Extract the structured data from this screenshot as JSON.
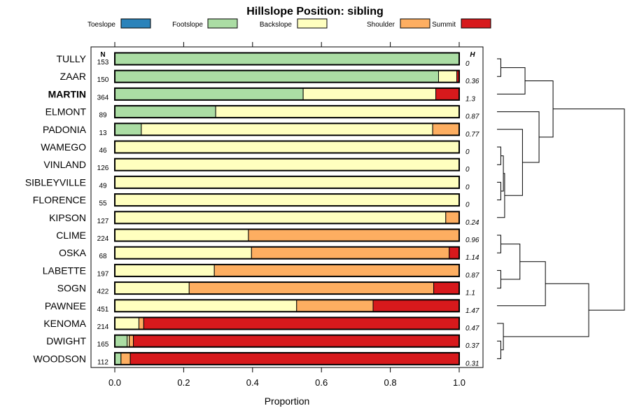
{
  "chart_data": {
    "type": "bar",
    "orientation": "horizontal",
    "stacked": true,
    "title": "Hillslope Position: sibling",
    "xlabel": "Proportion",
    "ylabel": "",
    "xlim": [
      0,
      1
    ],
    "xticks": [
      "0.0",
      "0.2",
      "0.4",
      "0.6",
      "0.8",
      "1.0"
    ],
    "n_header": "N",
    "h_header": "H",
    "legend": [
      {
        "name": "Toeslope",
        "color": "#2b83ba"
      },
      {
        "name": "Footslope",
        "color": "#abdda4"
      },
      {
        "name": "Backslope",
        "color": "#ffffbf"
      },
      {
        "name": "Shoulder",
        "color": "#fdae61"
      },
      {
        "name": "Summit",
        "color": "#d7191c"
      }
    ],
    "rows": [
      {
        "name": "TULLY",
        "n": "153",
        "h": "0",
        "bold": false,
        "values": [
          0,
          1.0,
          0,
          0,
          0
        ]
      },
      {
        "name": "ZAAR",
        "n": "150",
        "h": "0.36",
        "bold": false,
        "values": [
          0,
          0.94,
          0.053,
          0,
          0.007
        ]
      },
      {
        "name": "MARTIN",
        "n": "364",
        "h": "1.3",
        "bold": true,
        "values": [
          0,
          0.547,
          0.385,
          0,
          0.068
        ]
      },
      {
        "name": "ELMONT",
        "n": "89",
        "h": "0.87",
        "bold": false,
        "values": [
          0,
          0.293,
          0.707,
          0,
          0
        ]
      },
      {
        "name": "PADONIA",
        "n": "13",
        "h": "0.77",
        "bold": false,
        "values": [
          0,
          0.077,
          0.846,
          0.077,
          0
        ]
      },
      {
        "name": "WAMEGO",
        "n": "46",
        "h": "0",
        "bold": false,
        "values": [
          0,
          0,
          1.0,
          0,
          0
        ]
      },
      {
        "name": "VINLAND",
        "n": "126",
        "h": "0",
        "bold": false,
        "values": [
          0,
          0,
          1.0,
          0,
          0
        ]
      },
      {
        "name": "SIBLEYVILLE",
        "n": "49",
        "h": "0",
        "bold": false,
        "values": [
          0,
          0,
          1.0,
          0,
          0
        ]
      },
      {
        "name": "FLORENCE",
        "n": "55",
        "h": "0",
        "bold": false,
        "values": [
          0,
          0,
          1.0,
          0,
          0
        ]
      },
      {
        "name": "KIPSON",
        "n": "127",
        "h": "0.24",
        "bold": false,
        "values": [
          0,
          0,
          0.961,
          0.039,
          0
        ]
      },
      {
        "name": "CLIME",
        "n": "224",
        "h": "0.96",
        "bold": false,
        "values": [
          0,
          0,
          0.388,
          0.612,
          0
        ]
      },
      {
        "name": "OSKA",
        "n": "68",
        "h": "1.14",
        "bold": false,
        "values": [
          0,
          0,
          0.397,
          0.574,
          0.029
        ]
      },
      {
        "name": "LABETTE",
        "n": "197",
        "h": "0.87",
        "bold": false,
        "values": [
          0,
          0,
          0.289,
          0.711,
          0
        ]
      },
      {
        "name": "SOGN",
        "n": "422",
        "h": "1.1",
        "bold": false,
        "values": [
          0,
          0,
          0.216,
          0.71,
          0.074
        ]
      },
      {
        "name": "PAWNEE",
        "n": "451",
        "h": "1.47",
        "bold": false,
        "values": [
          0,
          0,
          0.528,
          0.222,
          0.25
        ]
      },
      {
        "name": "KENOMA",
        "n": "214",
        "h": "0.47",
        "bold": false,
        "values": [
          0,
          0,
          0.07,
          0.014,
          0.916
        ]
      },
      {
        "name": "DWIGHT",
        "n": "165",
        "h": "0.37",
        "bold": false,
        "values": [
          0,
          0.036,
          0.006,
          0.012,
          0.946
        ]
      },
      {
        "name": "WOODSON",
        "n": "112",
        "h": "0.31",
        "bold": false,
        "values": [
          0,
          0.018,
          0,
          0.027,
          0.955
        ]
      }
    ],
    "dendrogram": {
      "note": "hierarchical clustering of rows by composition; heights in relative units",
      "merges": [
        {
          "a": 0,
          "b": 1,
          "height": 0.03
        },
        {
          "a": "m0",
          "b": 2,
          "height": 0.22
        },
        {
          "a": 5,
          "b": 6,
          "height": 0.03
        },
        {
          "a": 7,
          "b": 8,
          "height": 0.03
        },
        {
          "a": "m2",
          "b": "m3",
          "height": 0.05
        },
        {
          "a": "m4",
          "b": 9,
          "height": 0.06
        },
        {
          "a": 4,
          "b": "m5",
          "height": 0.2
        },
        {
          "a": 3,
          "b": "m6",
          "height": 0.33
        },
        {
          "a": "m1",
          "b": "m7",
          "height": 0.44
        },
        {
          "a": 10,
          "b": 11,
          "height": 0.03
        },
        {
          "a": 12,
          "b": 13,
          "height": 0.03
        },
        {
          "a": "m9",
          "b": "m10",
          "height": 0.18
        },
        {
          "a": "m11",
          "b": 14,
          "height": 0.38
        },
        {
          "a": 16,
          "b": 17,
          "height": 0.03
        },
        {
          "a": 15,
          "b": "m13",
          "height": 0.05
        },
        {
          "a": "m12",
          "b": "m14",
          "height": 0.72
        },
        {
          "a": "m8",
          "b": "m15",
          "height": 1.0
        }
      ]
    }
  }
}
